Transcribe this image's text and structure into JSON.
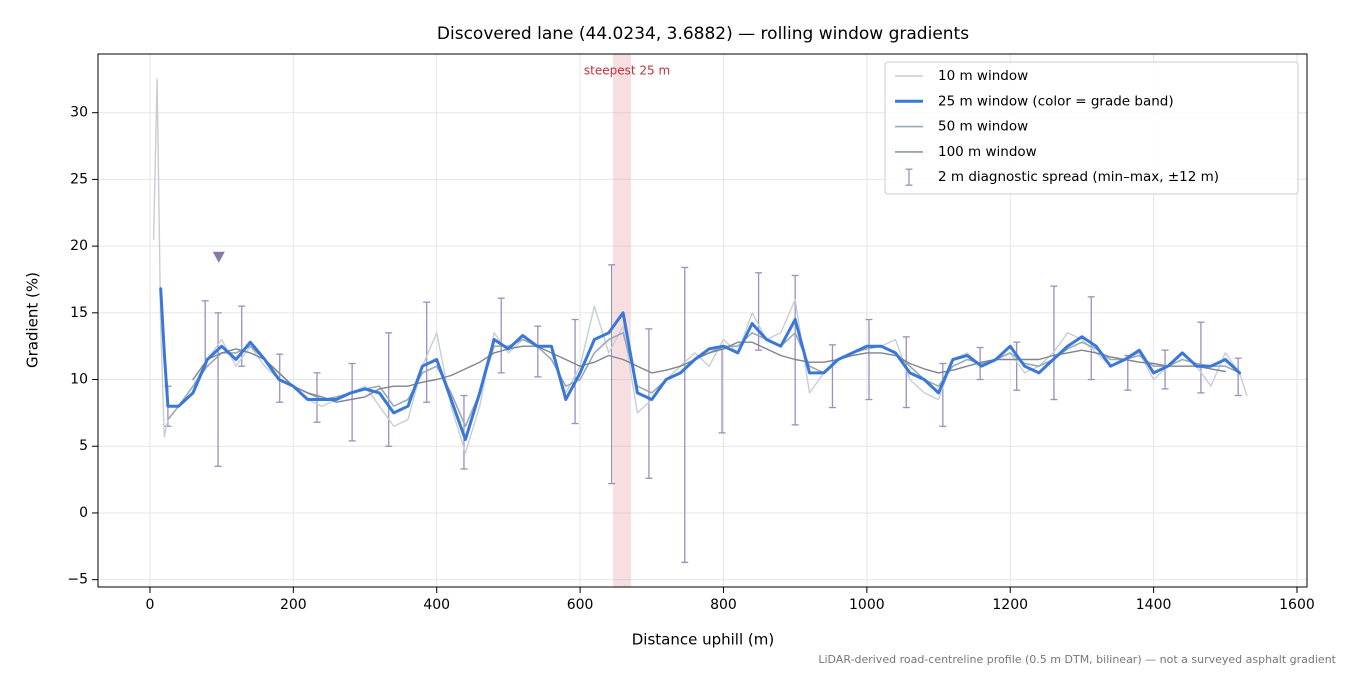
{
  "chart_data": {
    "type": "line",
    "title": "Discovered lane (44.0234, 3.6882) — rolling window gradients",
    "x_label": "Distance uphill (m)",
    "y_label": "Gradient (%)",
    "footnote": "LiDAR-derived road-centreline profile (0.5 m DTM, bilinear) — not a surveyed asphalt gradient",
    "xlim": [
      -72.5,
      1614
    ],
    "ylim": [
      -5.55,
      34.4
    ],
    "xticks": [
      0,
      200,
      400,
      600,
      800,
      1000,
      1200,
      1400,
      1600
    ],
    "yticks": [
      {
        "value": -5,
        "label": "−5"
      },
      0,
      5,
      10,
      15,
      20,
      25,
      30
    ],
    "grid": true,
    "legend": "upper right",
    "x": [
      5,
      10,
      15,
      20,
      25,
      40,
      60,
      80,
      100,
      120,
      140,
      160,
      180,
      200,
      220,
      240,
      260,
      280,
      300,
      320,
      340,
      360,
      380,
      400,
      420,
      440,
      460,
      480,
      500,
      520,
      540,
      560,
      580,
      600,
      620,
      640,
      660,
      680,
      700,
      720,
      740,
      760,
      780,
      800,
      820,
      840,
      860,
      880,
      900,
      920,
      940,
      960,
      980,
      1000,
      1020,
      1040,
      1060,
      1080,
      1100,
      1120,
      1140,
      1160,
      1180,
      1200,
      1220,
      1240,
      1260,
      1280,
      1300,
      1320,
      1340,
      1360,
      1380,
      1400,
      1420,
      1440,
      1460,
      1480,
      1500,
      1520,
      1530
    ],
    "series": [
      {
        "name": "10 m window",
        "color": "#c8ced6",
        "width": 1.4,
        "values": [
          20.5,
          32.5,
          14,
          5.7,
          7,
          8,
          9.5,
          11.5,
          13,
          11,
          12.5,
          11,
          10,
          9.5,
          8.5,
          8,
          8.5,
          9,
          9.5,
          8,
          6.5,
          7,
          11,
          13.5,
          8,
          4.5,
          8,
          13.5,
          12,
          13,
          12.5,
          12,
          9,
          11,
          15.5,
          12,
          14,
          7.5,
          8.5,
          10,
          11,
          12,
          11,
          13,
          12,
          15,
          13,
          13.5,
          16,
          9,
          10.5,
          11.5,
          12,
          12.5,
          12.5,
          13,
          10,
          9,
          8.5,
          11.5,
          12,
          11,
          11.5,
          12,
          10.5,
          11,
          12,
          13.5,
          13,
          12,
          11,
          11.5,
          12,
          10,
          11,
          12,
          11,
          9.5,
          12,
          10.5,
          8.8
        ]
      },
      {
        "name": "25 m window (color = grade band)",
        "color": "#3a78d8",
        "width": 3,
        "values": [
          null,
          null,
          16.8,
          12,
          8,
          8,
          9,
          11.5,
          12.5,
          11.5,
          12.8,
          11.5,
          10,
          9.5,
          8.5,
          8.5,
          8.5,
          9,
          9.3,
          9,
          7.5,
          8,
          11,
          11.5,
          8.5,
          5.5,
          9,
          13,
          12.3,
          13.3,
          12.5,
          12.5,
          8.5,
          10.5,
          13,
          13.5,
          15,
          9,
          8.5,
          10,
          10.5,
          11.5,
          12.3,
          12.5,
          12,
          14.2,
          13,
          12.5,
          14.5,
          10.5,
          10.5,
          11.5,
          12,
          12.5,
          12.5,
          12,
          10.5,
          10,
          9,
          11.5,
          11.8,
          11,
          11.5,
          12.5,
          11,
          10.5,
          11.5,
          12.5,
          13.2,
          12.5,
          11,
          11.5,
          12.2,
          10.5,
          11,
          12,
          11,
          11,
          11.5,
          10.5,
          null
        ]
      },
      {
        "name": "50 m window",
        "color": "#9aa8b8",
        "width": 1.6,
        "values": [
          null,
          null,
          null,
          null,
          7,
          8,
          9.5,
          11,
          12,
          12,
          12.5,
          11.5,
          10.5,
          9.5,
          9,
          8.5,
          8.7,
          9,
          9.3,
          9.5,
          8,
          8.5,
          10.5,
          11,
          9,
          6.5,
          9,
          12.5,
          12.5,
          13,
          12.5,
          11.5,
          9.5,
          10,
          12,
          13,
          13.5,
          9.5,
          9,
          10,
          10.5,
          11.5,
          12,
          12.5,
          12.5,
          13.5,
          13,
          12.5,
          13.5,
          11,
          10.5,
          11.5,
          12,
          12.3,
          12.5,
          12,
          11,
          10,
          9.5,
          11,
          11.5,
          11.2,
          11.5,
          12,
          11.2,
          11,
          11.5,
          12.3,
          12.8,
          12.3,
          11.5,
          11.5,
          11.8,
          11,
          11,
          11.5,
          11.2,
          11,
          11,
          10.5,
          null
        ]
      },
      {
        "name": "100 m window",
        "color": "#7c8590",
        "width": 1.4,
        "values": [
          null,
          null,
          null,
          null,
          null,
          null,
          10,
          11.5,
          12,
          12.3,
          12,
          11.5,
          10.5,
          9.5,
          9,
          8.7,
          8.3,
          8.5,
          8.7,
          9.3,
          9.5,
          9.5,
          9.8,
          10,
          10.3,
          10.8,
          11.3,
          12,
          12.3,
          12.5,
          12.5,
          12,
          11.5,
          11,
          11.3,
          11.8,
          11.5,
          11,
          10.5,
          10.7,
          11,
          11.5,
          12,
          12.3,
          12.8,
          12.8,
          12.3,
          11.8,
          11.5,
          11.3,
          11.3,
          11.5,
          11.8,
          12,
          12,
          11.8,
          11.2,
          10.8,
          10.5,
          10.7,
          11,
          11.3,
          11.5,
          11.5,
          11.5,
          11.5,
          11.8,
          12,
          12.2,
          12,
          11.7,
          11.5,
          11.3,
          11.2,
          11,
          11,
          11,
          10.8,
          10.6,
          null,
          null
        ]
      }
    ],
    "spread": {
      "name": "2 m diagnostic spread (min–max, ±12 m)",
      "color": "#9b8fbf",
      "x": [
        25,
        77,
        95,
        128,
        181,
        233,
        282,
        333,
        386,
        438,
        490,
        541,
        593,
        644,
        696,
        746,
        798,
        849,
        900,
        952,
        1003,
        1055,
        1106,
        1158,
        1209,
        1261,
        1313,
        1364,
        1416,
        1466,
        1518
      ],
      "min": [
        6.5,
        11,
        3.5,
        11,
        8.3,
        6.8,
        5.4,
        5.0,
        8.3,
        3.3,
        10.5,
        10.2,
        6.7,
        2.2,
        2.6,
        -3.7,
        6.0,
        12.2,
        6.6,
        7.9,
        8.5,
        7.9,
        6.5,
        10.0,
        9.2,
        8.5,
        10.0,
        9.2,
        9.3,
        9.0,
        8.8
      ],
      "max": [
        9.5,
        15.9,
        15,
        15.5,
        11.9,
        10.5,
        11.2,
        13.5,
        15.8,
        8.8,
        16.1,
        14.0,
        14.5,
        18.6,
        13.8,
        18.4,
        12.3,
        18.0,
        17.8,
        12.6,
        14.5,
        13.2,
        11.2,
        12.4,
        12.8,
        17.0,
        16.2,
        11.8,
        12.2,
        14.3,
        11.6
      ]
    },
    "marker": {
      "x": 96,
      "y": 19.2,
      "color": "#8878a8"
    },
    "highlight": {
      "x0": 646,
      "x1": 671,
      "label": "steepest 25 m",
      "color": "#e8a0a8",
      "label_color": "#c0303a"
    }
  }
}
